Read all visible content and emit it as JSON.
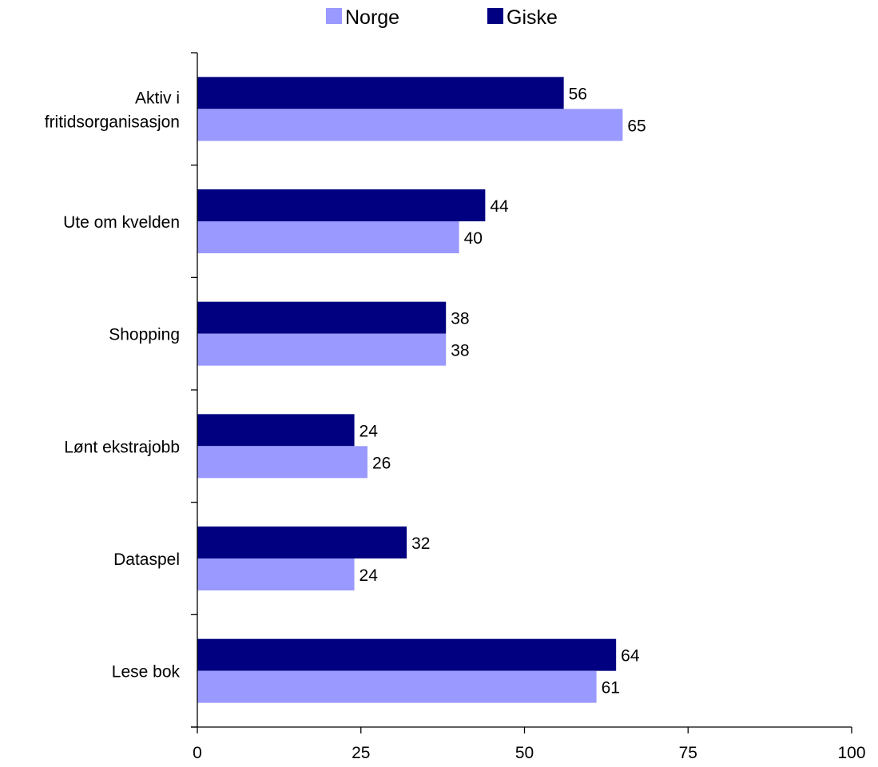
{
  "chart_data": {
    "type": "bar",
    "orientation": "horizontal",
    "categories": [
      [
        "Aktiv i",
        "fritidsorganisasjon"
      ],
      [
        "Ute om kvelden"
      ],
      [
        "Shopping"
      ],
      [
        "Lønt ekstrajobb"
      ],
      [
        "Dataspel"
      ],
      [
        "Lese bok"
      ]
    ],
    "series": [
      {
        "name": "Norge",
        "color": "#9999ff",
        "values": [
          65,
          40,
          38,
          26,
          24,
          61
        ]
      },
      {
        "name": "Giske",
        "color": "#000080",
        "values": [
          56,
          44,
          38,
          24,
          32,
          64
        ]
      }
    ],
    "xlim": [
      0,
      100
    ],
    "xticks": [
      0,
      25,
      50,
      75,
      100
    ],
    "title": "",
    "xlabel": "",
    "ylabel": "",
    "grid": false,
    "legend_position": "top",
    "data_labels": true
  }
}
